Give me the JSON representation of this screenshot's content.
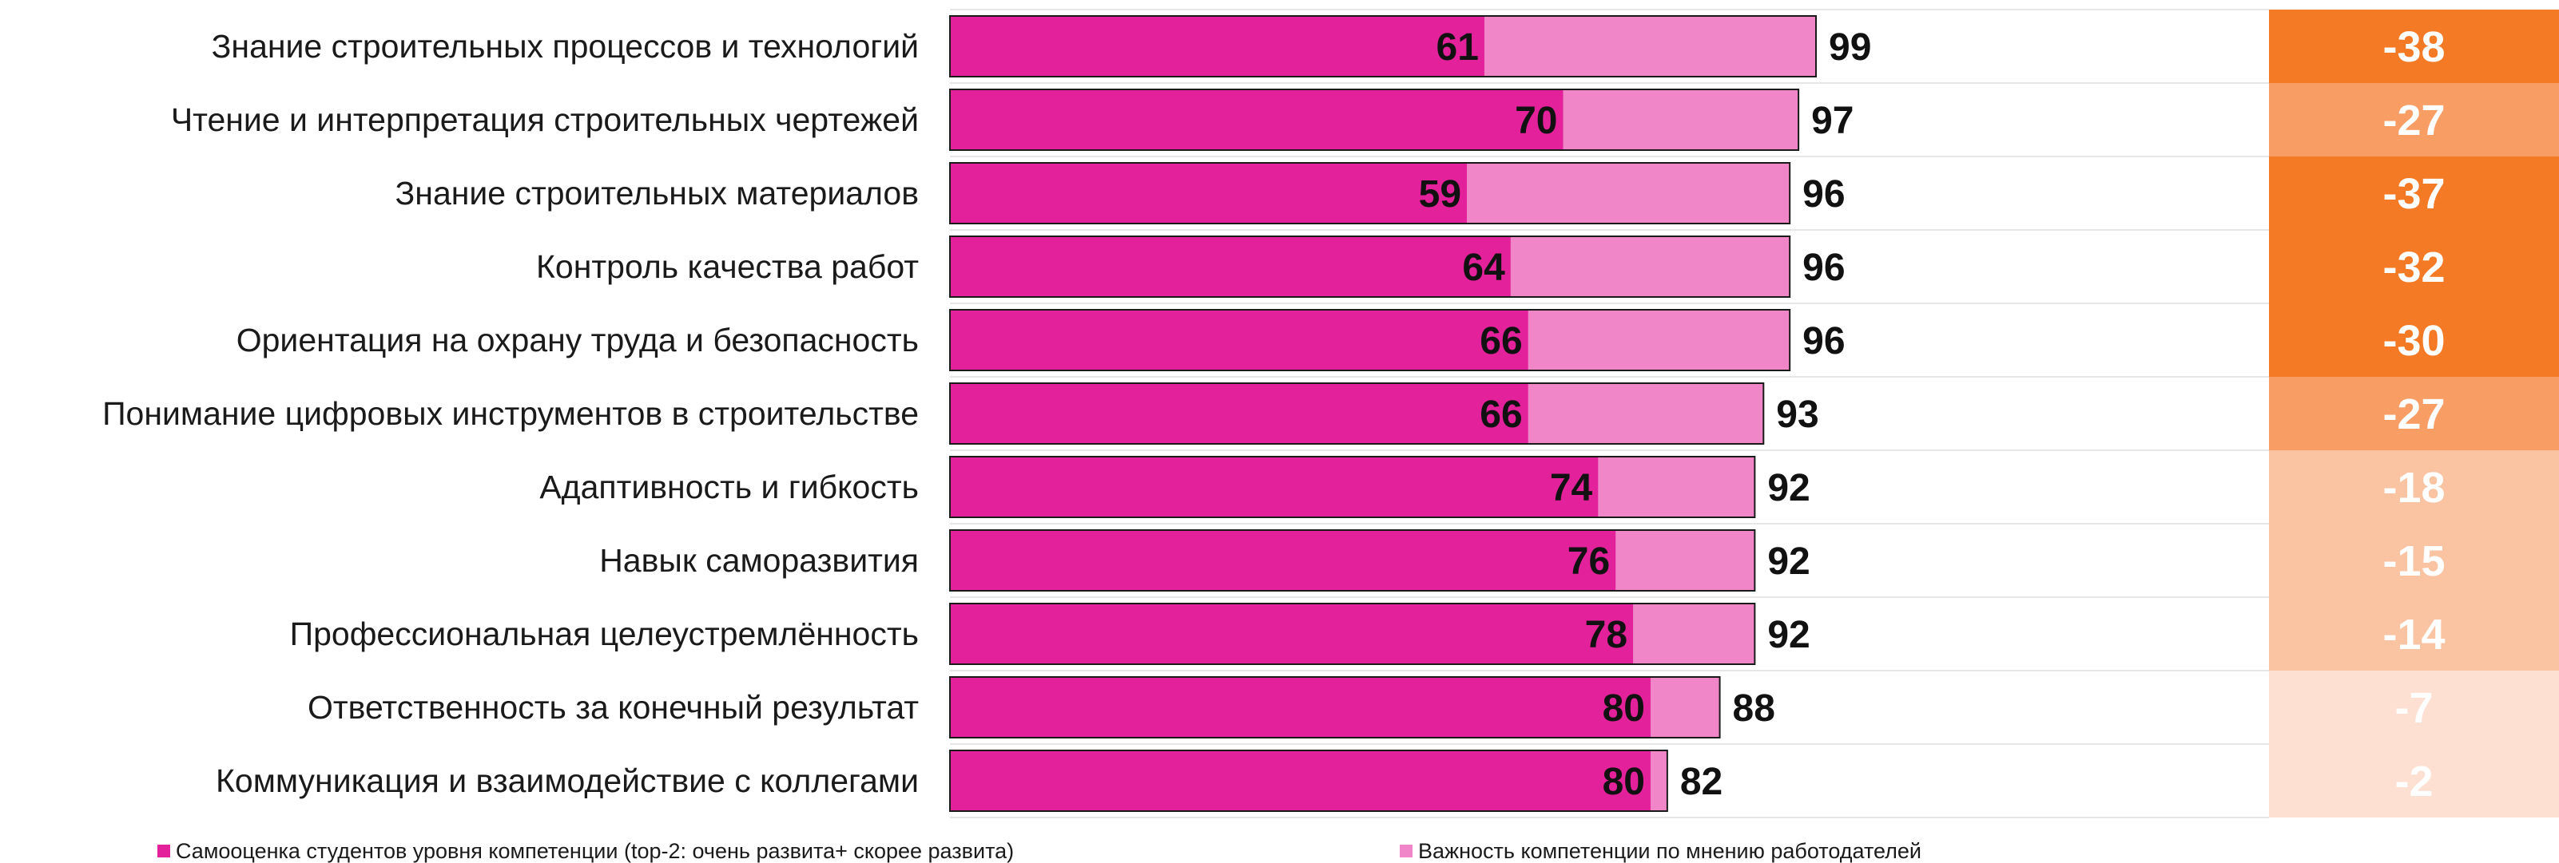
{
  "chart_data": {
    "type": "bar",
    "orientation": "horizontal",
    "categories": [
      "Знание строительных процессов и технологий",
      "Чтение и интерпретация строительных чертежей",
      "Знание строительных материалов",
      "Контроль качества работ",
      "Ориентация на охрану труда и безопасность",
      "Понимание цифровых инструментов в строительстве",
      "Адаптивность и гибкость",
      "Навык саморазвития",
      "Профессиональная целеустремлённость",
      "Ответственность за конечный результат",
      "Коммуникация и взаимодействие с коллегами"
    ],
    "series": [
      {
        "name": "Самооценка студентов уровня компетенции (top-2: очень развита+ скорее развита)",
        "color": "#e2219a",
        "values": [
          61,
          70,
          59,
          64,
          66,
          66,
          74,
          76,
          78,
          80,
          80
        ]
      },
      {
        "name": "Важность компетенции по мнению работодателей",
        "color": "#f086c8",
        "values": [
          99,
          97,
          96,
          96,
          96,
          93,
          92,
          92,
          92,
          88,
          82
        ]
      }
    ],
    "difference": {
      "values": [
        "-38",
        "-27",
        "-37",
        "-32",
        "-30",
        "-27",
        "-18",
        "-15",
        "-14",
        "-7",
        "-2"
      ],
      "color_scale": [
        "#f47a26",
        "#f89d63",
        "#fac3a2",
        "#fde0d2"
      ]
    },
    "xlim": [
      0,
      100
    ],
    "legend_position": "bottom"
  }
}
